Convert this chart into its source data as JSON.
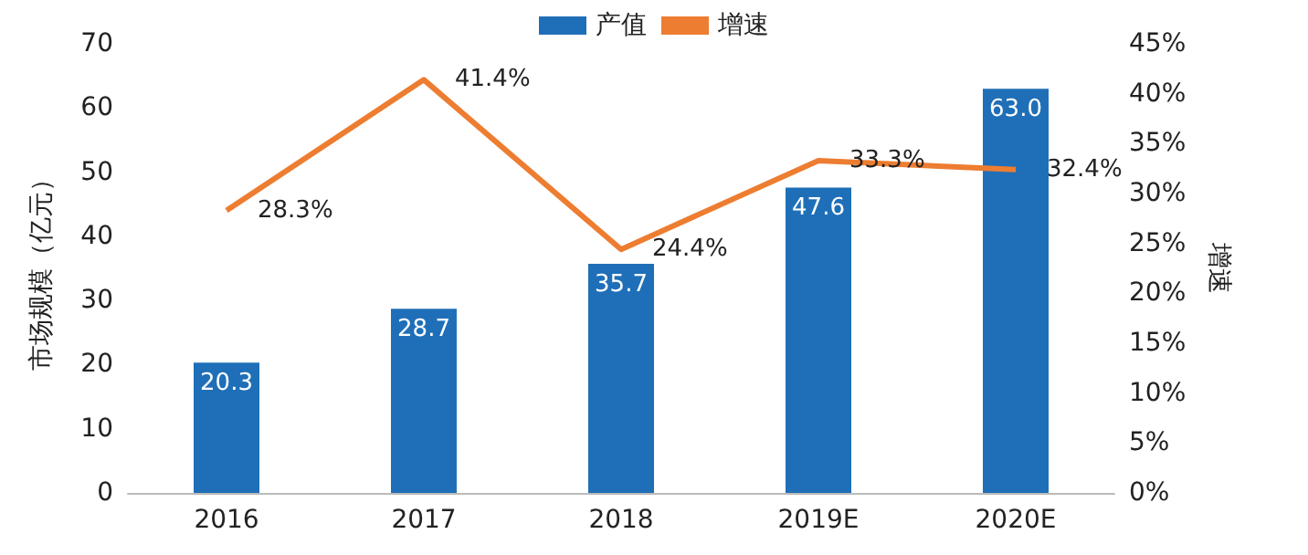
{
  "chart_data": {
    "type": "bar",
    "categories": [
      "2016",
      "2017",
      "2018",
      "2019E",
      "2020E"
    ],
    "series": [
      {
        "name": "产值",
        "type": "bar",
        "color": "#1f6fb8",
        "values": [
          20.3,
          28.7,
          35.7,
          47.6,
          63.0
        ],
        "value_labels": [
          "20.3",
          "28.7",
          "35.7",
          "47.6",
          "63.0"
        ]
      },
      {
        "name": "增速",
        "type": "line",
        "axis": "y2",
        "color": "#ed7d31",
        "values": [
          28.3,
          41.4,
          24.4,
          33.3,
          32.4
        ],
        "value_labels": [
          "28.3%",
          "41.4%",
          "24.4%",
          "33.3%",
          "32.4%"
        ]
      }
    ],
    "ylabel": "市场规模（亿元）",
    "y2label": "增速",
    "ylim": [
      0,
      70
    ],
    "yticks": [
      0,
      10,
      20,
      30,
      40,
      50,
      60,
      70
    ],
    "y2lim": [
      0,
      45
    ],
    "y2ticks": [
      {
        "value": 0,
        "label": "0%"
      },
      {
        "value": 5,
        "label": "5%"
      },
      {
        "value": 10,
        "label": "10%"
      },
      {
        "value": 15,
        "label": "15%"
      },
      {
        "value": 20,
        "label": "20%"
      },
      {
        "value": 25,
        "label": "25%"
      },
      {
        "value": 30,
        "label": "30%"
      },
      {
        "value": 35,
        "label": "35%"
      },
      {
        "value": 40,
        "label": "40%"
      },
      {
        "value": 45,
        "label": "45%"
      }
    ],
    "legend": "top",
    "grid": false,
    "marker": "none",
    "line_style": "solid"
  }
}
